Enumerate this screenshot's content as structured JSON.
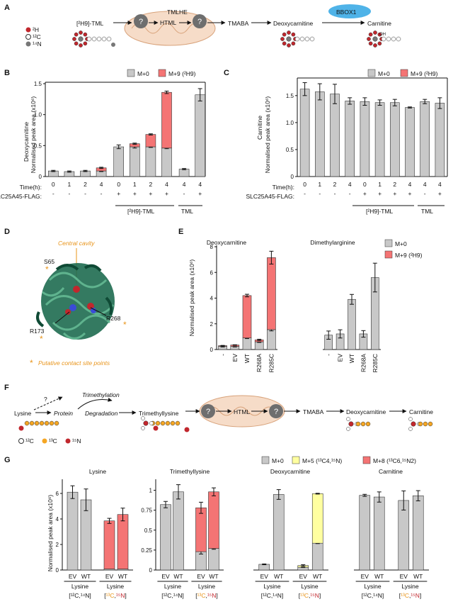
{
  "panels": {
    "A": "A",
    "B": "B",
    "C": "C",
    "D": "D",
    "E": "E",
    "F": "F",
    "G": "G"
  },
  "colors": {
    "grey": "#c8c8c8",
    "red": "#f47474",
    "yellow": "#ffffa0",
    "orange": "#f5a623",
    "darkred": "#c1272d",
    "membrane": "#f6dcc8",
    "bbox": "#4fb3e8",
    "protein": "#1e6b50"
  },
  "panelA": {
    "legend": [
      "²H",
      "¹²C",
      "¹⁴N"
    ],
    "substrate": "[²H9]-TML",
    "enzyme1": "TMLHE",
    "hml": "HTML",
    "tmaba": "TMABA",
    "deoxy": "Deoxycarnitine",
    "bbox": "BBOX1",
    "carnitine": "Carnitine",
    "q": "?",
    "oh": "OH"
  },
  "panelB": {
    "legend": [
      "M+0",
      "M+9 (²H9)"
    ],
    "ylabel1": "Deoxycarnitine",
    "ylabel2": "Normalised peak area (x10⁶)",
    "rowlabel_time": "Time(h):",
    "rowlabel_slc": "SLC25A45-FLAG:",
    "group1": "[²H9]-TML",
    "group2": "TML"
  },
  "panelC": {
    "legend": [
      "M+0",
      "M+9 (²H9)"
    ],
    "ylabel1": "Carnitine",
    "ylabel2": "Normalised peak area (x10⁶)",
    "rowlabel_time": "Time(h):",
    "rowlabel_slc": "SLC25A45-FLAG:",
    "group1": "[²H9]-TML",
    "group2": "TML"
  },
  "panelD": {
    "central": "Central cavity",
    "s65": "S65",
    "r268": "R268",
    "r173": "R173",
    "star": "*",
    "caption": "Putative contact site points"
  },
  "panelE": {
    "title1": "Deoxycarnitine",
    "title2": "Dimethylarginine",
    "ylabel": "Normalised peak area (x10⁶)",
    "legend": [
      "M+0",
      "M+9 (²H9)"
    ]
  },
  "panelF": {
    "lysine": "Lysine",
    "protein": "Protein",
    "trimethylation": "Trimethylation",
    "degradation": "Degradation",
    "tml": "Trimethyllysine",
    "q": "?",
    "hml": "HTML",
    "tmaba": "TMABA",
    "deoxy": "Deoxycarnitine",
    "carnitine": "Carnitine",
    "legend": [
      "¹²C",
      "¹³C",
      "¹⁵N"
    ]
  },
  "panelG": {
    "legend": [
      "M+0",
      "M+5 (¹³C4,¹⁵N)",
      "M+8 (¹³C6,¹⁵N2)"
    ],
    "ylabel": "Normalised peak area (x10⁶)",
    "xgroup_label": "Lysine",
    "unlab": "[¹²C,¹⁴N]",
    "lab": "[¹³C,¹⁵N]",
    "lab_c": "¹³C",
    "lab_n": "¹⁵N",
    "lab_open": "[",
    "lab_comma": ",",
    "lab_close": "]"
  },
  "chart_data": [
    {
      "id": "B",
      "type": "bar",
      "title": "Deoxycarnitine",
      "ylabel": "Normalised peak area (x10⁶)",
      "ylim": [
        0,
        1.5
      ],
      "yticks": [
        0,
        0.5,
        1.0,
        1.5
      ],
      "categories": [
        "0",
        "1",
        "2",
        "4",
        "0",
        "1",
        "2",
        "4",
        "4",
        "4"
      ],
      "slc": [
        "-",
        "-",
        "-",
        "-",
        "+",
        "+",
        "+",
        "+",
        "-",
        "+"
      ],
      "series": [
        {
          "name": "M+0",
          "values": [
            0.09,
            0.08,
            0.09,
            0.09,
            0.48,
            0.48,
            0.48,
            0.46,
            0.12,
            1.32
          ],
          "err": [
            0.01,
            0.01,
            0.01,
            0.01,
            0.03,
            0.02,
            0.01,
            0.01,
            0.01,
            0.1
          ]
        },
        {
          "name": "M+9 (²H9)",
          "values": [
            0,
            0,
            0,
            0.05,
            0,
            0.05,
            0.2,
            0.9,
            0,
            0
          ],
          "err": [
            0,
            0,
            0,
            0.01,
            0,
            0.01,
            0.01,
            0.02,
            0,
            0
          ]
        }
      ]
    },
    {
      "id": "C",
      "type": "bar",
      "title": "Carnitine",
      "ylabel": "Normalised peak area (x10⁶)",
      "ylim": [
        0,
        1.8
      ],
      "yticks": [
        0,
        0.5,
        1.0,
        1.5
      ],
      "categories": [
        "0",
        "1",
        "2",
        "4",
        "0",
        "1",
        "2",
        "4",
        "4",
        "4"
      ],
      "slc": [
        "-",
        "-",
        "-",
        "-",
        "+",
        "+",
        "+",
        "+",
        "-",
        "+"
      ],
      "series": [
        {
          "name": "M+0",
          "values": [
            1.62,
            1.57,
            1.53,
            1.4,
            1.39,
            1.37,
            1.37,
            1.28,
            1.39,
            1.36
          ],
          "err": [
            0.12,
            0.15,
            0.18,
            0.06,
            0.07,
            0.05,
            0.06,
            0.01,
            0.04,
            0.1
          ]
        },
        {
          "name": "M+9 (²H9)",
          "values": [
            0,
            0,
            0,
            0,
            0,
            0,
            0,
            0,
            0,
            0
          ],
          "err": [
            0,
            0,
            0,
            0,
            0,
            0,
            0,
            0,
            0,
            0
          ]
        }
      ]
    },
    {
      "id": "E1",
      "type": "bar",
      "title": "Deoxycarnitine",
      "ylabel": "Normalised peak area (x10⁶)",
      "ylim": [
        0,
        8
      ],
      "yticks": [
        0,
        2,
        4,
        6,
        8
      ],
      "categories": [
        "-",
        "EV",
        "WT",
        "R268A",
        "R285C"
      ],
      "series": [
        {
          "name": "M+0",
          "values": [
            0.25,
            0.25,
            0.9,
            0.6,
            1.55
          ],
          "err": [
            0.05,
            0.05,
            0.05,
            0.05,
            0.1
          ]
        },
        {
          "name": "M+9 (²H9)",
          "values": [
            0.05,
            0.1,
            3.3,
            0.15,
            5.6
          ],
          "err": [
            0.02,
            0.02,
            0.1,
            0.05,
            0.5
          ]
        }
      ]
    },
    {
      "id": "E2",
      "type": "bar",
      "title": "Dimethylarginine",
      "ylim": [
        0,
        2.5
      ],
      "categories": [
        "-",
        "EV",
        "WT",
        "R268A",
        "R285C"
      ],
      "series": [
        {
          "name": "M+0",
          "values": [
            0.35,
            0.38,
            1.22,
            0.38,
            1.75
          ],
          "err": [
            0.1,
            0.1,
            0.12,
            0.08,
            0.35
          ]
        }
      ]
    },
    {
      "id": "G1",
      "type": "bar",
      "title": "Lysine",
      "ylim": [
        0,
        7
      ],
      "yticks": [
        0,
        2,
        4,
        6
      ],
      "categories": [
        "EV",
        "WT",
        "EV",
        "WT"
      ],
      "series": [
        {
          "name": "M+0",
          "values": [
            6.1,
            5.5,
            0.08,
            0.08
          ],
          "err": [
            0.5,
            0.85,
            0,
            0
          ]
        },
        {
          "name": "M+8 (¹³C6,¹⁵N2)",
          "values": [
            0,
            0,
            3.77,
            4.27
          ],
          "err": [
            0,
            0,
            0.2,
            0.5
          ]
        }
      ]
    },
    {
      "id": "G2",
      "type": "bar",
      "title": "Trimethyllysine",
      "ylim": [
        0,
        1.12
      ],
      "yticks": [
        0,
        0.25,
        0.5,
        0.75,
        1
      ],
      "categories": [
        "EV",
        "WT",
        "EV",
        "WT"
      ],
      "series": [
        {
          "name": "M+0",
          "values": [
            0.82,
            0.98,
            0.23,
            0.27
          ],
          "err": [
            0.04,
            0.09,
            0.03,
            0.01
          ]
        },
        {
          "name": "M+8 (¹³C6,¹⁵N2)",
          "values": [
            0,
            0,
            0.55,
            0.71
          ],
          "err": [
            0,
            0,
            0.07,
            0.05
          ]
        }
      ]
    },
    {
      "id": "G3",
      "type": "bar",
      "title": "Deoxycarnitine",
      "ylim": [
        0,
        11
      ],
      "categories": [
        "EV",
        "WT",
        "EV",
        "WT"
      ],
      "series": [
        {
          "name": "M+0",
          "values": [
            0.7,
            9.3,
            0.35,
            3.3
          ],
          "err": [
            0.05,
            0.6,
            0.05,
            0.05
          ]
        },
        {
          "name": "M+5 (¹³C4,¹⁵N)",
          "values": [
            0,
            0,
            0.2,
            6.1
          ],
          "err": [
            0,
            0,
            0.1,
            0.05
          ]
        }
      ]
    },
    {
      "id": "G4",
      "type": "bar",
      "title": "Carnitine",
      "ylim": [
        0,
        7
      ],
      "categories": [
        "EV",
        "WT",
        "EV",
        "WT"
      ],
      "series": [
        {
          "name": "M+0",
          "values": [
            5.85,
            5.72,
            5.45,
            5.82
          ],
          "err": [
            0.08,
            0.4,
            0.75,
            0.4
          ]
        }
      ]
    }
  ]
}
